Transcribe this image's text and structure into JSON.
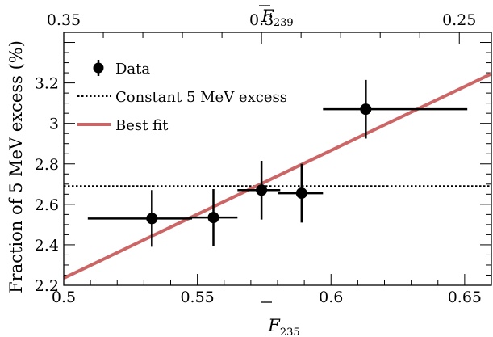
{
  "chart_data": {
    "type": "scatter",
    "xlabel": "F",
    "xlabel_sub": "235",
    "x2label": "F",
    "x2label_sub": "239",
    "ylabel": "Fraction of 5 MeV excess (%)",
    "xlim": [
      0.5,
      0.66
    ],
    "ylim": [
      2.2,
      3.45
    ],
    "x_ticks": [
      "0.5",
      "0.55",
      "0.6",
      "0.65"
    ],
    "x_tick_values": [
      0.5,
      0.55,
      0.6,
      0.65
    ],
    "y_ticks": [
      "2.2",
      "2.4",
      "2.6",
      "2.8",
      "3",
      "3.2"
    ],
    "y_tick_values": [
      2.2,
      2.4,
      2.6,
      2.8,
      3.0,
      3.2
    ],
    "x2_ticks": [
      "0.35",
      "0.3",
      "0.25"
    ],
    "x2_tick_positions_in_x": [
      0.5,
      0.574,
      0.648
    ],
    "legend_position": "top-left",
    "series": [
      {
        "name": "Data",
        "color": "#000000",
        "points": [
          {
            "x": 0.533,
            "y": 2.53,
            "xerr_low": 0.024,
            "xerr_high": 0.015,
            "yerr": 0.14
          },
          {
            "x": 0.556,
            "y": 2.535,
            "xerr_low": 0.009,
            "xerr_high": 0.009,
            "yerr": 0.14
          },
          {
            "x": 0.574,
            "y": 2.67,
            "xerr_low": 0.009,
            "xerr_high": 0.007,
            "yerr": 0.145
          },
          {
            "x": 0.589,
            "y": 2.655,
            "xerr_low": 0.009,
            "xerr_high": 0.008,
            "yerr": 0.145
          },
          {
            "x": 0.613,
            "y": 3.07,
            "xerr_low": 0.016,
            "xerr_high": 0.038,
            "yerr": 0.145
          }
        ]
      },
      {
        "name": "Constant 5 MeV excess",
        "color": "#000000",
        "style": "dotted",
        "y": 2.69
      },
      {
        "name": "Best fit",
        "color": "#cc6666",
        "style": "solid",
        "x": [
          0.5,
          0.66
        ],
        "y": [
          2.235,
          3.245
        ]
      }
    ]
  }
}
